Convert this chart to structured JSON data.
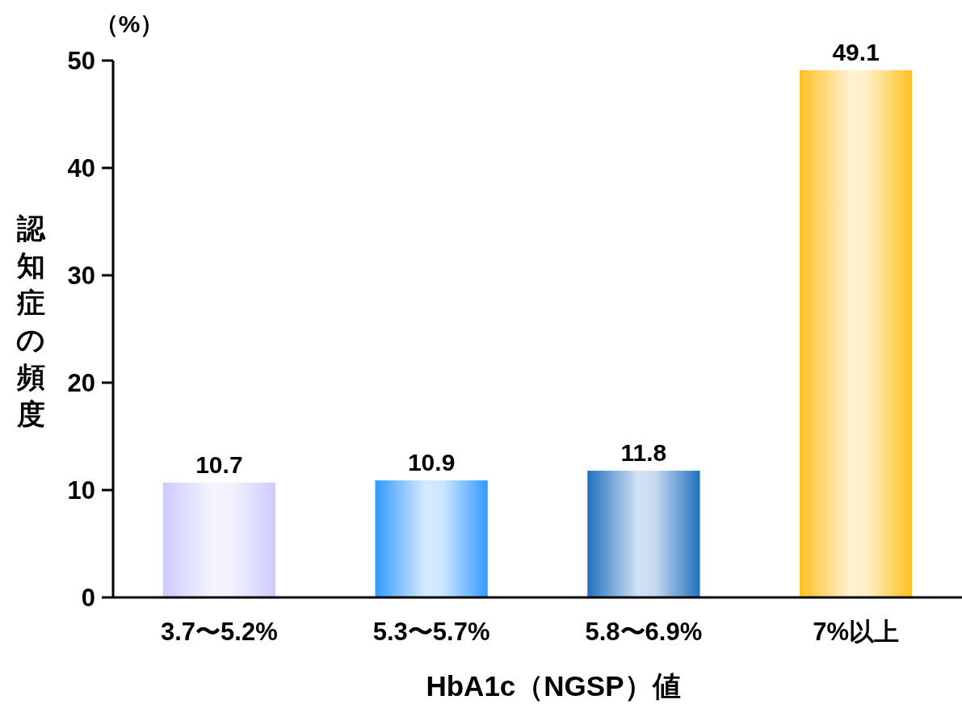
{
  "chart_data": {
    "type": "bar",
    "ylabel": "認知症の頻度",
    "xlabel": "HbA1c（NGSP）値",
    "annotations": [
      "（%）"
    ],
    "categories": [
      "3.7〜5.2%",
      "5.3〜5.7%",
      "5.8〜6.9%",
      "7%以上"
    ],
    "values": [
      10.7,
      10.9,
      11.8,
      49.1
    ],
    "colors": [
      "#ccccff",
      "#3399ff",
      "#2070c0",
      "#ffc020"
    ],
    "ylim": [
      0,
      50
    ],
    "yticks": [
      0,
      10,
      20,
      30,
      40,
      50
    ],
    "data_labels": true
  }
}
